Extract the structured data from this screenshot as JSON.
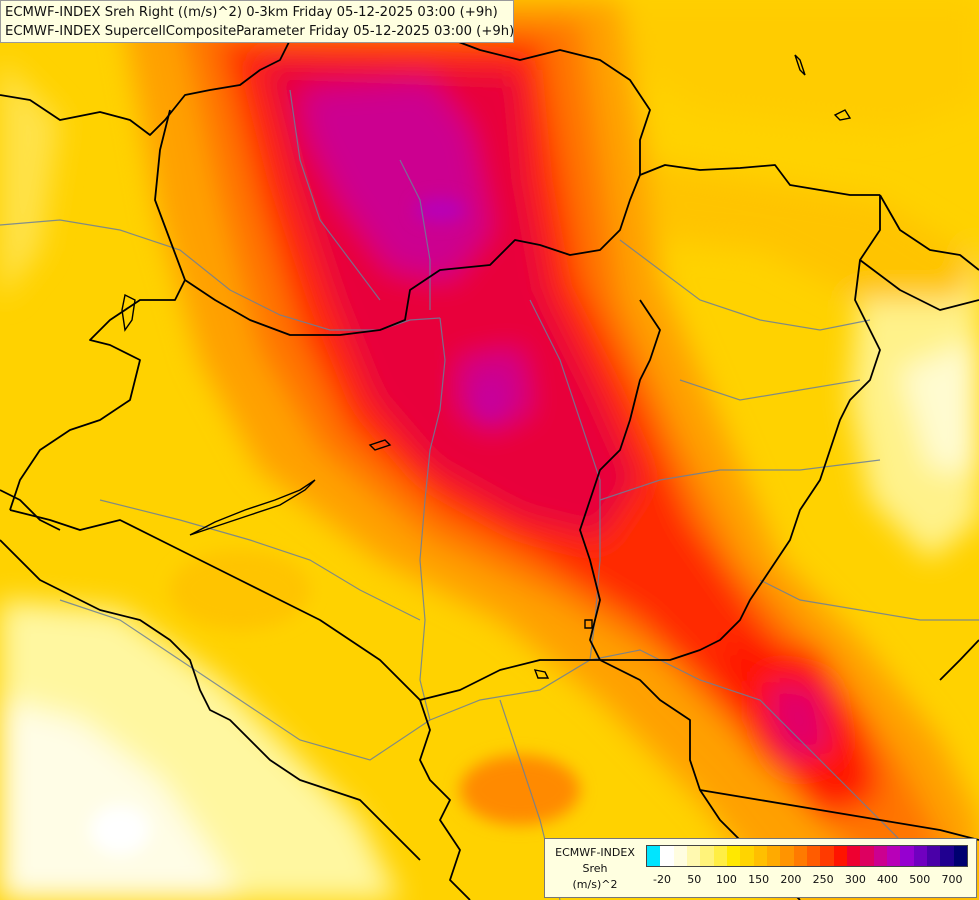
{
  "header": {
    "line1": "ECMWF-INDEX Sreh Right ((m/s)^2) 0-3km Friday 05-12-2025 03:00 (+9h)",
    "line2": "ECMWF-INDEX SupercellCompositeParameter Friday 05-12-2025 03:00 (+9h)"
  },
  "legend": {
    "title": "ECMWF-INDEX",
    "variable": "Sreh",
    "unit": "(m/s)^2",
    "ticks": [
      "-20",
      "50",
      "100",
      "150",
      "200",
      "250",
      "300",
      "400",
      "500",
      "700"
    ],
    "colors": [
      "#00e5ff",
      "#ffffff",
      "#fffde0",
      "#fff9b0",
      "#fff37a",
      "#ffee44",
      "#ffe800",
      "#ffd400",
      "#ffbf00",
      "#ffaa00",
      "#ff9400",
      "#ff7a00",
      "#ff5c00",
      "#ff3a00",
      "#ff1400",
      "#ee0030",
      "#dd0060",
      "#cc0090",
      "#b800b8",
      "#9600d0",
      "#7000c0",
      "#4a00a8",
      "#200090",
      "#000070"
    ]
  },
  "map": {
    "colors": {
      "background": "#ffd700",
      "country_border": "#000000",
      "river": "#6b7f99"
    }
  }
}
